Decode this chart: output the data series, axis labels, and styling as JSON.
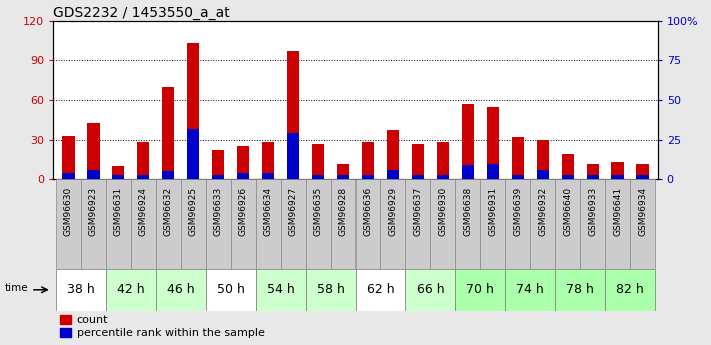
{
  "title": "GDS2232 / 1453550_a_at",
  "samples": [
    "GSM96630",
    "GSM96923",
    "GSM96631",
    "GSM96924",
    "GSM96632",
    "GSM96925",
    "GSM96633",
    "GSM96926",
    "GSM96634",
    "GSM96927",
    "GSM96635",
    "GSM96928",
    "GSM96636",
    "GSM96929",
    "GSM96637",
    "GSM96930",
    "GSM96638",
    "GSM96931",
    "GSM96639",
    "GSM96932",
    "GSM96640",
    "GSM96933",
    "GSM96641",
    "GSM96934"
  ],
  "time_groups": [
    {
      "label": "38 h",
      "indices": [
        0,
        1
      ]
    },
    {
      "label": "42 h",
      "indices": [
        2,
        3
      ]
    },
    {
      "label": "46 h",
      "indices": [
        4,
        5
      ]
    },
    {
      "label": "50 h",
      "indices": [
        6,
        7
      ]
    },
    {
      "label": "54 h",
      "indices": [
        8,
        9
      ]
    },
    {
      "label": "58 h",
      "indices": [
        10,
        11
      ]
    },
    {
      "label": "62 h",
      "indices": [
        12,
        13
      ]
    },
    {
      "label": "66 h",
      "indices": [
        14,
        15
      ]
    },
    {
      "label": "70 h",
      "indices": [
        16,
        17
      ]
    },
    {
      "label": "74 h",
      "indices": [
        18,
        19
      ]
    },
    {
      "label": "78 h",
      "indices": [
        20,
        21
      ]
    },
    {
      "label": "82 h",
      "indices": [
        22,
        23
      ]
    }
  ],
  "time_group_colors": [
    "#ffffff",
    "#ccffcc",
    "#ccffcc",
    "#ffffff",
    "#ccffcc",
    "#ccffcc",
    "#ffffff",
    "#ccffcc",
    "#aaffaa",
    "#aaffaa",
    "#aaffaa",
    "#aaffaa"
  ],
  "count_values": [
    33,
    43,
    10,
    28,
    70,
    103,
    22,
    25,
    28,
    97,
    27,
    12,
    28,
    37,
    27,
    28,
    57,
    55,
    32,
    30,
    19,
    12,
    13,
    12
  ],
  "percentile_values": [
    4,
    6,
    3,
    3,
    5,
    32,
    3,
    4,
    4,
    29,
    3,
    3,
    3,
    6,
    3,
    3,
    9,
    10,
    3,
    6,
    3,
    3,
    3,
    3
  ],
  "ylim_left": [
    0,
    120
  ],
  "ylim_right": [
    0,
    100
  ],
  "yticks_left": [
    0,
    30,
    60,
    90,
    120
  ],
  "yticks_right": [
    0,
    25,
    50,
    75,
    100
  ],
  "ytick_labels_right": [
    "0",
    "25",
    "50",
    "75",
    "100%"
  ],
  "bar_color_red": "#cc0000",
  "bar_color_blue": "#0000cc",
  "bar_width": 0.5,
  "bg_plot": "#ffffff",
  "bg_figure": "#e8e8e8",
  "grid_color": "#000000",
  "tick_color_left": "#cc0000",
  "tick_color_right": "#0000cc",
  "title_fontsize": 10,
  "label_fontsize": 6.5,
  "time_label_fontsize": 9,
  "legend_fontsize": 8,
  "sample_box_color": "#cccccc",
  "sample_box_edge": "#888888"
}
